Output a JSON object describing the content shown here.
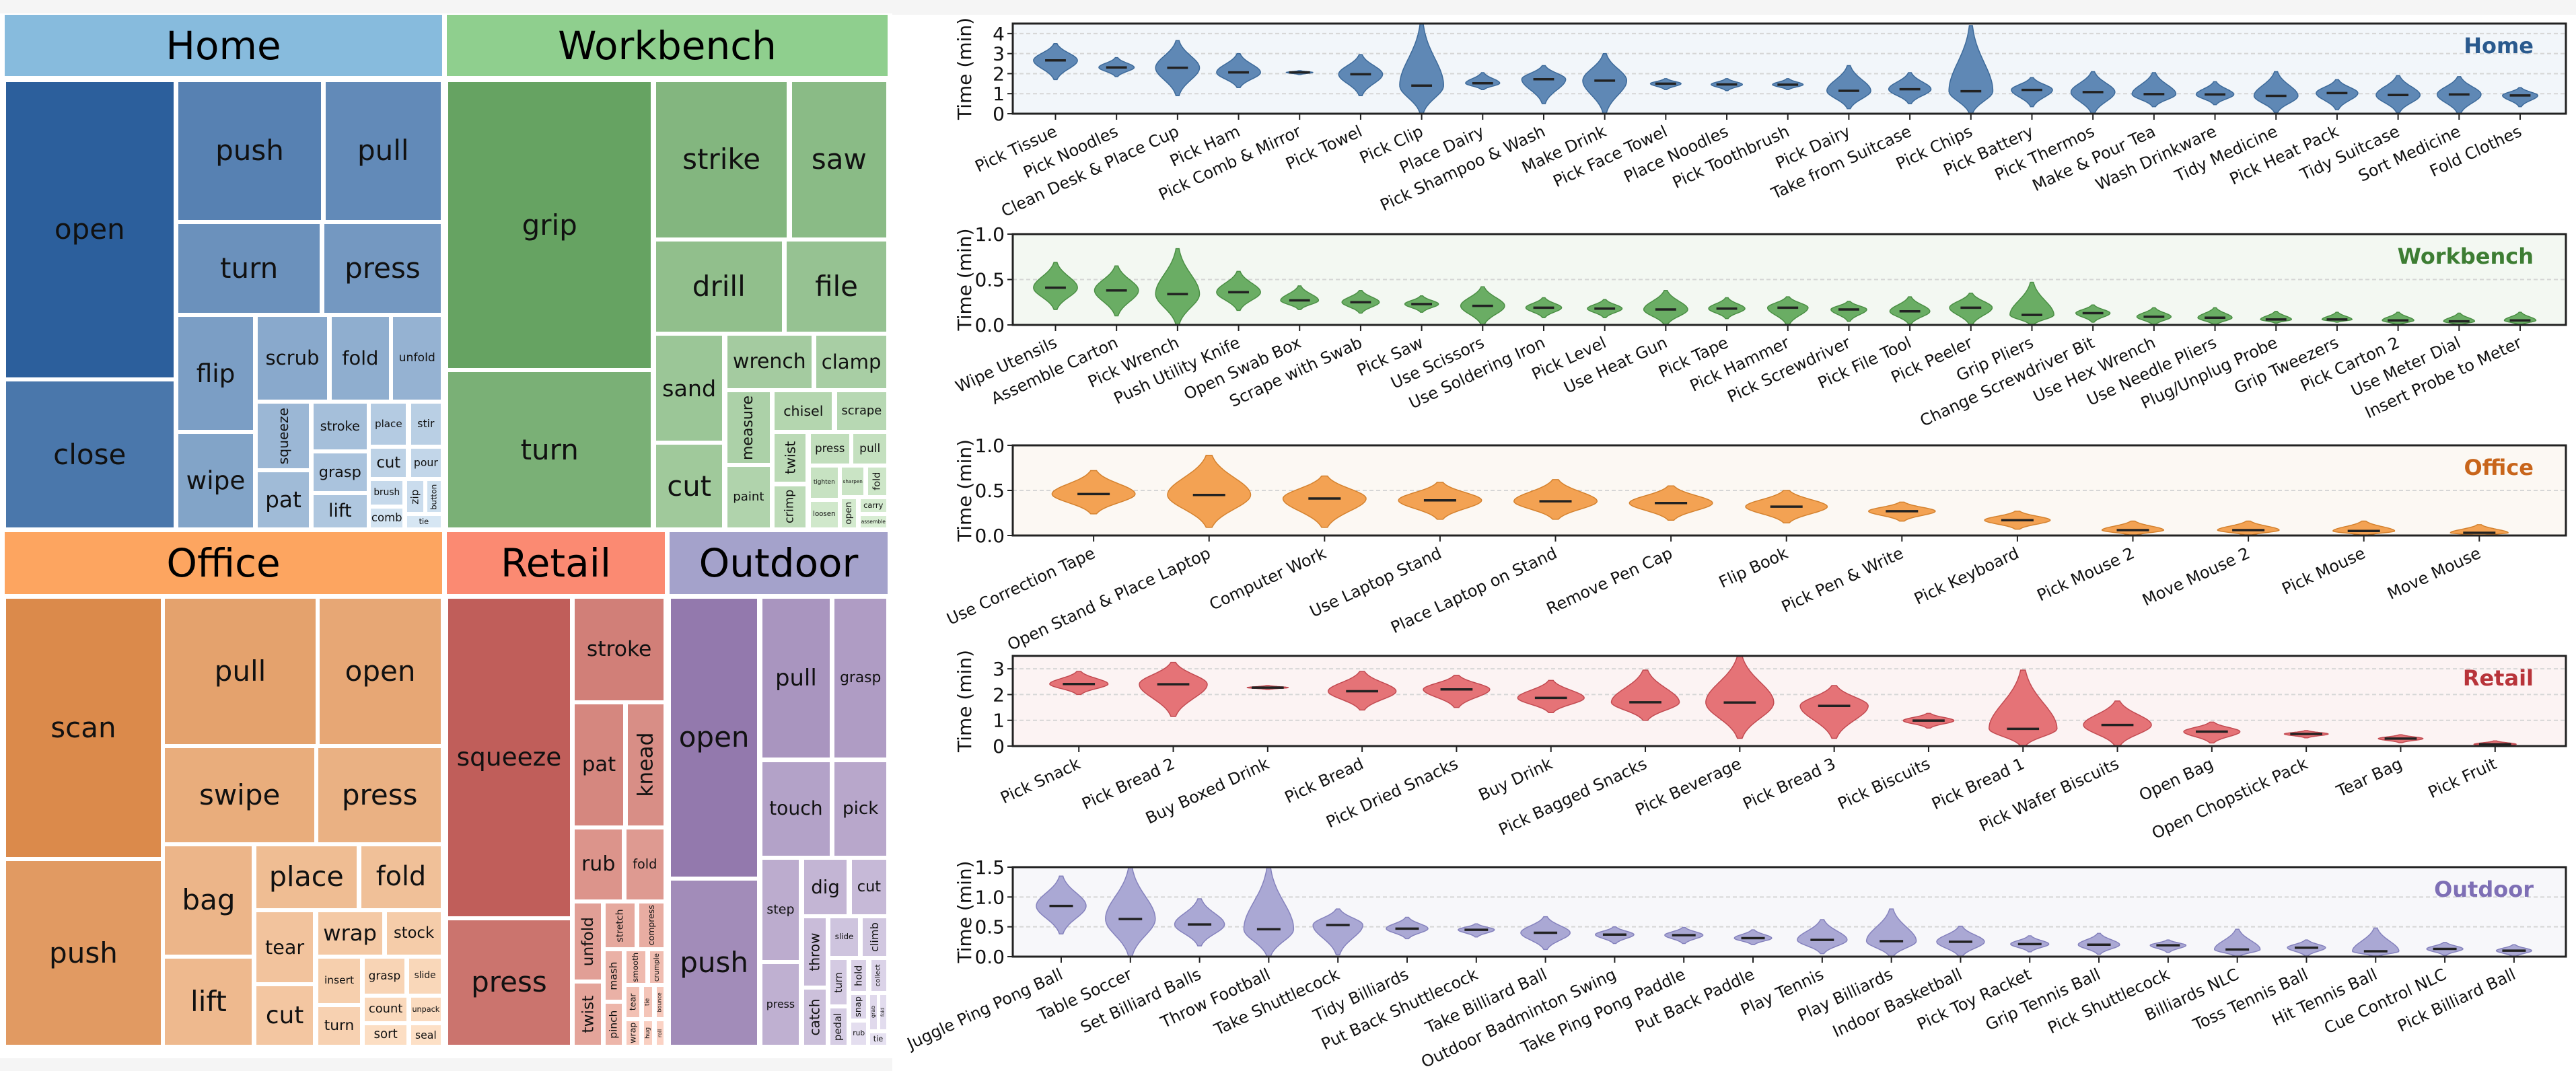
{
  "chart_data": [
    {
      "type": "treemap",
      "groups": [
        {
          "name": "Home",
          "header_color": "#87bbdd",
          "color_dark": "#2c5f9c",
          "color_light": "#d6e6f3",
          "cells": [
            {
              "label": "open"
            },
            {
              "label": "close"
            },
            {
              "label": "push"
            },
            {
              "label": "pull"
            },
            {
              "label": "turn"
            },
            {
              "label": "press"
            },
            {
              "label": "flip"
            },
            {
              "label": "wipe"
            },
            {
              "label": "scrub"
            },
            {
              "label": "fold"
            },
            {
              "label": "unfold"
            },
            {
              "label": "squeeze",
              "vertical": true
            },
            {
              "label": "pat"
            },
            {
              "label": "stroke"
            },
            {
              "label": "grasp"
            },
            {
              "label": "lift"
            },
            {
              "label": "place"
            },
            {
              "label": "stir"
            },
            {
              "label": "cut"
            },
            {
              "label": "pour"
            },
            {
              "label": "brush"
            },
            {
              "label": "zip",
              "vertical": true
            },
            {
              "label": "button",
              "vertical": true
            },
            {
              "label": "comb"
            },
            {
              "label": "tie"
            }
          ]
        },
        {
          "name": "Workbench",
          "header_color": "#8fcf8e",
          "color_dark": "#66a362",
          "color_light": "#d8edd3",
          "cells": [
            {
              "label": "grip"
            },
            {
              "label": "turn"
            },
            {
              "label": "strike"
            },
            {
              "label": "saw"
            },
            {
              "label": "drill"
            },
            {
              "label": "file"
            },
            {
              "label": "sand"
            },
            {
              "label": "cut"
            },
            {
              "label": "wrench"
            },
            {
              "label": "clamp"
            },
            {
              "label": "measure",
              "vertical": true
            },
            {
              "label": "paint"
            },
            {
              "label": "chisel"
            },
            {
              "label": "scrape"
            },
            {
              "label": "twist",
              "vertical": true
            },
            {
              "label": "crimp",
              "vertical": true
            },
            {
              "label": "press"
            },
            {
              "label": "pull"
            },
            {
              "label": "tighten"
            },
            {
              "label": "sharpen"
            },
            {
              "label": "fold",
              "vertical": true
            },
            {
              "label": "loosen"
            },
            {
              "label": "open",
              "vertical": true
            },
            {
              "label": "carry"
            },
            {
              "label": "assemble"
            }
          ]
        },
        {
          "name": "Office",
          "header_color": "#fda560",
          "color_dark": "#db8a4b",
          "color_light": "#fde0c6",
          "cells": [
            {
              "label": "scan"
            },
            {
              "label": "push"
            },
            {
              "label": "pull"
            },
            {
              "label": "open"
            },
            {
              "label": "swipe"
            },
            {
              "label": "press"
            },
            {
              "label": "bag"
            },
            {
              "label": "lift"
            },
            {
              "label": "place"
            },
            {
              "label": "fold"
            },
            {
              "label": "tear"
            },
            {
              "label": "cut"
            },
            {
              "label": "wrap"
            },
            {
              "label": "stock"
            },
            {
              "label": "insert"
            },
            {
              "label": "turn"
            },
            {
              "label": "grasp"
            },
            {
              "label": "slide"
            },
            {
              "label": "count"
            },
            {
              "label": "unpack"
            },
            {
              "label": "sort"
            },
            {
              "label": "seal"
            }
          ]
        },
        {
          "name": "Retail",
          "header_color": "#fb8a72",
          "color_dark": "#c05e5a",
          "color_light": "#fbd2c4",
          "cells": [
            {
              "label": "squeeze"
            },
            {
              "label": "press"
            },
            {
              "label": "stroke"
            },
            {
              "label": "pat"
            },
            {
              "label": "knead",
              "vertical": true
            },
            {
              "label": "rub"
            },
            {
              "label": "fold"
            },
            {
              "label": "unfold",
              "vertical": true
            },
            {
              "label": "twist",
              "vertical": true
            },
            {
              "label": "stretch",
              "vertical": true
            },
            {
              "label": "compress",
              "vertical": true
            },
            {
              "label": "mash",
              "vertical": true
            },
            {
              "label": "pinch",
              "vertical": true
            },
            {
              "label": "smooth",
              "vertical": true
            },
            {
              "label": "crumple",
              "vertical": true
            },
            {
              "label": "tear",
              "vertical": true
            },
            {
              "label": "tie",
              "vertical": true
            },
            {
              "label": "bounce",
              "vertical": true
            },
            {
              "label": "wrap",
              "vertical": true
            },
            {
              "label": "hug",
              "vertical": true
            },
            {
              "label": "roll",
              "vertical": true
            }
          ]
        },
        {
          "name": "Outdoor",
          "header_color": "#a4a2cb",
          "color_dark": "#9379ad",
          "color_light": "#e6e1f1",
          "cells": [
            {
              "label": "open"
            },
            {
              "label": "push"
            },
            {
              "label": "pull"
            },
            {
              "label": "grasp"
            },
            {
              "label": "touch"
            },
            {
              "label": "pick"
            },
            {
              "label": "step"
            },
            {
              "label": "press"
            },
            {
              "label": "dig"
            },
            {
              "label": "cut"
            },
            {
              "label": "throw",
              "vertical": true
            },
            {
              "label": "catch",
              "vertical": true
            },
            {
              "label": "slide"
            },
            {
              "label": "climb",
              "vertical": true
            },
            {
              "label": "turn",
              "vertical": true
            },
            {
              "label": "pedal",
              "vertical": true
            },
            {
              "label": "hold",
              "vertical": true
            },
            {
              "label": "collect",
              "vertical": true
            },
            {
              "label": "snap",
              "vertical": true
            },
            {
              "label": "grab",
              "vertical": true
            },
            {
              "label": "fold",
              "vertical": true
            },
            {
              "label": "rub"
            },
            {
              "label": "tie"
            }
          ]
        }
      ]
    },
    {
      "type": "violin",
      "title": "Home",
      "ylabel": "Time (min)",
      "ylim": [
        0,
        4.5
      ],
      "yticks": [
        "0",
        "1",
        "2",
        "3",
        "4"
      ],
      "grid": true,
      "color": "#5f88b5",
      "edge_color": "#3d6a9a",
      "bg_color": "#f2f6fa",
      "title_color": "#2a5a8e",
      "categories": [
        "Pick Tissue",
        "Pick Noodles",
        "Clean Desk & Place Cup",
        "Pick Ham",
        "Pick Comb & Mirror",
        "Pick Towel",
        "Pick Clip",
        "Place Dairy",
        "Pick Shampoo & Wash",
        "Make Drink",
        "Pick Face Towel",
        "Place Noodles",
        "Pick Toothbrush",
        "Pick Dairy",
        "Take from Suitcase",
        "Pick Chips",
        "Pick Battery",
        "Pick Thermos",
        "Make & Pour Tea",
        "Wash Drinkware",
        "Tidy Medicine",
        "Pick Heat Pack",
        "Tidy Suitcase",
        "Sort Medicine",
        "Fold Clothes"
      ],
      "median": [
        2.66,
        2.31,
        2.29,
        2.06,
        2.06,
        1.97,
        1.4,
        1.52,
        1.72,
        1.65,
        1.5,
        1.46,
        1.45,
        1.14,
        1.22,
        1.12,
        1.19,
        1.08,
        0.98,
        0.96,
        0.89,
        1.03,
        0.93,
        0.96,
        0.91
      ],
      "min": [
        1.7,
        1.85,
        0.9,
        1.3,
        1.95,
        0.9,
        0,
        1.2,
        0.5,
        0,
        1.2,
        1.15,
        1.2,
        0.25,
        0.5,
        0,
        0.35,
        0,
        0.35,
        0.45,
        0.05,
        0.2,
        0.05,
        0,
        0.35
      ],
      "max": [
        3.5,
        2.8,
        3.65,
        3.0,
        2.15,
        2.95,
        4.5,
        2.05,
        2.4,
        3.0,
        1.75,
        1.75,
        1.75,
        2.4,
        2.05,
        4.4,
        1.8,
        2.1,
        2.05,
        1.6,
        2.1,
        1.7,
        1.9,
        1.85,
        1.3
      ]
    },
    {
      "type": "violin",
      "title": "Workbench",
      "ylabel": "Time (min)",
      "ylim": [
        0,
        1.0
      ],
      "yticks": [
        "0.0",
        "0.5",
        "1.0"
      ],
      "grid": true,
      "color": "#6aad64",
      "edge_color": "#4b8f45",
      "bg_color": "#f3f8f2",
      "title_color": "#3d7d33",
      "categories": [
        "Wipe Utensils",
        "Assemble Carton",
        "Pick Wrench",
        "Push Utility Knife",
        "Open Swab Box",
        "Scrape with Swab",
        "Pick Saw",
        "Use Scissors",
        "Use Soldering Iron",
        "Pick Level",
        "Use Heat Gun",
        "Pick Tape",
        "Pick Hammer",
        "Pick Screwdriver",
        "Pick File Tool",
        "Pick Peeler",
        "Grip Pliers",
        "Change Screwdriver Bit",
        "Use Hex Wrench",
        "Use Needle Pliers",
        "Plug/Unplug Probe",
        "Grip Tweezers",
        "Pick Carton 2",
        "Use Meter Dial",
        "Insert Probe to Meter"
      ],
      "median": [
        0.41,
        0.38,
        0.34,
        0.36,
        0.27,
        0.25,
        0.23,
        0.21,
        0.19,
        0.18,
        0.17,
        0.18,
        0.19,
        0.17,
        0.15,
        0.19,
        0.11,
        0.13,
        0.09,
        0.08,
        0.06,
        0.06,
        0.05,
        0.04,
        0.05
      ],
      "min": [
        0.17,
        0.1,
        0,
        0.16,
        0.17,
        0.13,
        0.14,
        0,
        0.08,
        0.08,
        0,
        0.07,
        0,
        0.04,
        0.01,
        0,
        0,
        0.03,
        0,
        0,
        0.02,
        0.03,
        0,
        0,
        0
      ],
      "max": [
        0.69,
        0.65,
        0.84,
        0.59,
        0.43,
        0.38,
        0.32,
        0.42,
        0.3,
        0.28,
        0.38,
        0.3,
        0.31,
        0.26,
        0.31,
        0.35,
        0.47,
        0.22,
        0.19,
        0.19,
        0.15,
        0.14,
        0.14,
        0.13,
        0.14
      ]
    },
    {
      "type": "violin",
      "title": "Office",
      "ylabel": "Time (min)",
      "ylim": [
        0,
        1.0
      ],
      "yticks": [
        "0.0",
        "0.5",
        "1.0"
      ],
      "grid": true,
      "color": "#f3a253",
      "edge_color": "#d4822f",
      "bg_color": "#fcf8f3",
      "title_color": "#c8651b",
      "categories": [
        "Use Correction Tape",
        "Open Stand & Place Laptop",
        "Computer Work",
        "Use Laptop Stand",
        "Place Laptop on Stand",
        "Remove Pen Cap",
        "Flip Book",
        "Pick Pen & Write",
        "Pick Keyboard",
        "Pick Mouse 2",
        "Move Mouse 2",
        "Pick Mouse",
        "Move Mouse"
      ],
      "median": [
        0.46,
        0.45,
        0.41,
        0.39,
        0.38,
        0.36,
        0.32,
        0.27,
        0.17,
        0.06,
        0.06,
        0.05,
        0.03
      ],
      "min": [
        0.24,
        0.09,
        0.09,
        0.18,
        0.18,
        0.17,
        0.14,
        0.16,
        0.07,
        0,
        0,
        0,
        0
      ],
      "max": [
        0.72,
        0.89,
        0.66,
        0.59,
        0.62,
        0.55,
        0.5,
        0.37,
        0.27,
        0.16,
        0.16,
        0.16,
        0.12
      ]
    },
    {
      "type": "violin",
      "title": "Retail",
      "ylabel": "Time (min)",
      "ylim": [
        0,
        3.5
      ],
      "yticks": [
        "0",
        "1",
        "2",
        "3"
      ],
      "grid": true,
      "color": "#e57377",
      "edge_color": "#c24b52",
      "bg_color": "#fcf3f3",
      "title_color": "#b8343a",
      "categories": [
        "Pick Snack",
        "Pick Bread 2",
        "Buy Boxed Drink",
        "Pick Bread",
        "Pick Dried Snacks",
        "Buy Drink",
        "Pick Bagged Snacks",
        "Pick Beverage",
        "Pick Bread 3",
        "Pick Biscuits",
        "Pick Bread 1",
        "Pick Wafer Biscuits",
        "Open Bag",
        "Open Chopstick Pack",
        "Tear Bag",
        "Pick Fruit"
      ],
      "median": [
        2.41,
        2.4,
        2.27,
        2.13,
        2.2,
        1.87,
        1.7,
        1.69,
        1.56,
        0.99,
        0.67,
        0.82,
        0.56,
        0.47,
        0.29,
        0.07
      ],
      "min": [
        2.0,
        1.15,
        2.2,
        1.4,
        1.5,
        1.3,
        1.0,
        0.3,
        0.3,
        0.7,
        0,
        0,
        0.12,
        0.32,
        0.13,
        0
      ],
      "max": [
        2.9,
        3.25,
        2.35,
        2.9,
        2.75,
        2.55,
        2.95,
        3.5,
        2.35,
        1.27,
        2.95,
        1.75,
        0.93,
        0.6,
        0.44,
        0.2
      ]
    },
    {
      "type": "violin",
      "title": "Outdoor",
      "ylabel": "Time (min)",
      "ylim": [
        0,
        1.5
      ],
      "yticks": [
        "0.0",
        "0.5",
        "1.0",
        "1.5"
      ],
      "grid": true,
      "color": "#aaa8d4",
      "edge_color": "#8582bd",
      "bg_color": "#f7f7fa",
      "title_color": "#7e6fb5",
      "categories": [
        "Juggle Ping Pong Ball",
        "Table Soccer",
        "Set Billiard Balls",
        "Throw Football",
        "Take Shuttlecock",
        "Tidy Billiards",
        "Put Back Shuttlecock",
        "Take Billiard Ball",
        "Outdoor Badminton Swing",
        "Take Ping Pong Paddle",
        "Put Back Paddle",
        "Play Tennis",
        "Play Billiards",
        "Indoor Basketball",
        "Pick Toy Racket",
        "Grip Tennis Ball",
        "Pick Shuttlecock",
        "Billiards NLC",
        "Toss Tennis Ball",
        "Hit Tennis Ball",
        "Cue Control NLC",
        "Pick Billiard Ball"
      ],
      "median": [
        0.85,
        0.63,
        0.54,
        0.46,
        0.53,
        0.47,
        0.45,
        0.4,
        0.37,
        0.36,
        0.31,
        0.28,
        0.26,
        0.25,
        0.21,
        0.2,
        0.19,
        0.12,
        0.15,
        0.09,
        0.13,
        0.1
      ],
      "min": [
        0.38,
        0,
        0.18,
        0,
        0.03,
        0.3,
        0.33,
        0.12,
        0.22,
        0.22,
        0.2,
        0.05,
        0,
        0,
        0.08,
        0.04,
        0.07,
        0,
        0.01,
        0,
        0.02,
        0
      ],
      "max": [
        1.35,
        1.5,
        0.97,
        1.5,
        0.8,
        0.66,
        0.55,
        0.67,
        0.5,
        0.49,
        0.45,
        0.62,
        0.8,
        0.51,
        0.35,
        0.39,
        0.28,
        0.46,
        0.28,
        0.48,
        0.24,
        0.2
      ]
    }
  ]
}
